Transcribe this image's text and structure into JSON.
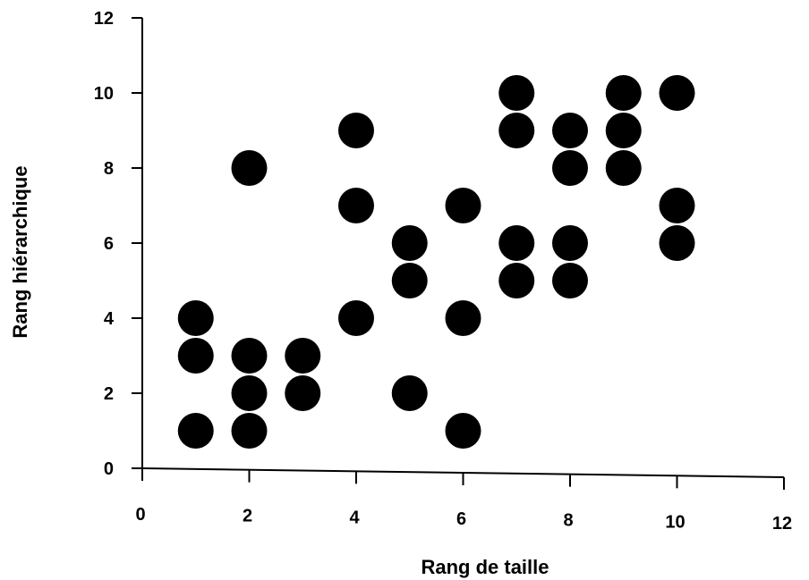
{
  "chart_data": {
    "type": "scatter",
    "title": "",
    "xlabel": "Rang de taille",
    "ylabel": "Rang hiérarchique",
    "xlim": [
      0,
      12
    ],
    "ylim": [
      0,
      12
    ],
    "xticks": [
      0,
      2,
      4,
      6,
      8,
      10,
      12
    ],
    "yticks": [
      0,
      2,
      4,
      6,
      8,
      10,
      12
    ],
    "grid": false,
    "legend": "none",
    "marker_color": "#000000",
    "series": [
      {
        "points": [
          {
            "x": 1,
            "y": 4
          },
          {
            "x": 1,
            "y": 3
          },
          {
            "x": 1,
            "y": 1
          },
          {
            "x": 2,
            "y": 8
          },
          {
            "x": 2,
            "y": 3
          },
          {
            "x": 2,
            "y": 2
          },
          {
            "x": 2,
            "y": 1
          },
          {
            "x": 3,
            "y": 3
          },
          {
            "x": 3,
            "y": 2
          },
          {
            "x": 4,
            "y": 9
          },
          {
            "x": 4,
            "y": 7
          },
          {
            "x": 4,
            "y": 4
          },
          {
            "x": 5,
            "y": 6
          },
          {
            "x": 5,
            "y": 5
          },
          {
            "x": 5,
            "y": 2
          },
          {
            "x": 6,
            "y": 7
          },
          {
            "x": 6,
            "y": 4
          },
          {
            "x": 6,
            "y": 1
          },
          {
            "x": 7,
            "y": 10
          },
          {
            "x": 7,
            "y": 9
          },
          {
            "x": 7,
            "y": 6
          },
          {
            "x": 7,
            "y": 5
          },
          {
            "x": 8,
            "y": 9
          },
          {
            "x": 8,
            "y": 8
          },
          {
            "x": 8,
            "y": 6
          },
          {
            "x": 8,
            "y": 5
          },
          {
            "x": 9,
            "y": 10
          },
          {
            "x": 9,
            "y": 9
          },
          {
            "x": 9,
            "y": 8
          },
          {
            "x": 10,
            "y": 10
          },
          {
            "x": 10,
            "y": 7
          },
          {
            "x": 10,
            "y": 6
          }
        ]
      }
    ]
  }
}
